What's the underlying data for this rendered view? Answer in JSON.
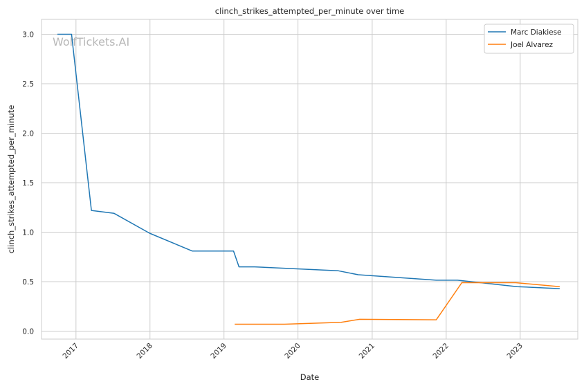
{
  "chart_data": {
    "type": "line",
    "title": "clinch_strikes_attempted_per_minute over time",
    "xlabel": "Date",
    "ylabel": "clinch_strikes_attempted_per_minute",
    "watermark": "WolfTickets.AI",
    "xlim": [
      "2016-07-15",
      "2023-10-12"
    ],
    "ylim": [
      -0.08,
      3.15
    ],
    "grid": true,
    "legend_position": "top-right",
    "x_ticks": [
      "2017",
      "2018",
      "2019",
      "2020",
      "2021",
      "2022",
      "2023"
    ],
    "y_ticks": [
      "0.0",
      "0.5",
      "1.0",
      "1.5",
      "2.0",
      "2.5",
      "3.0"
    ],
    "x_tick_values": [
      "2017-01-01",
      "2018-01-01",
      "2019-01-01",
      "2020-01-01",
      "2021-01-01",
      "2022-01-01",
      "2023-01-01"
    ],
    "y_tick_values": [
      0.0,
      0.5,
      1.0,
      1.5,
      2.0,
      2.5,
      3.0
    ],
    "series": [
      {
        "name": "Marc Diakiese",
        "color": "#1f77b4",
        "points": [
          {
            "x": "2016-10-01",
            "y": 3.0
          },
          {
            "x": "2016-12-10",
            "y": 3.0
          },
          {
            "x": "2017-03-18",
            "y": 1.22
          },
          {
            "x": "2017-07-08",
            "y": 1.19
          },
          {
            "x": "2017-12-30",
            "y": 0.99
          },
          {
            "x": "2018-07-28",
            "y": 0.81
          },
          {
            "x": "2019-02-17",
            "y": 0.81
          },
          {
            "x": "2019-03-16",
            "y": 0.65
          },
          {
            "x": "2019-06-01",
            "y": 0.65
          },
          {
            "x": "2020-07-18",
            "y": 0.61
          },
          {
            "x": "2020-10-24",
            "y": 0.57
          },
          {
            "x": "2021-11-13",
            "y": 0.515
          },
          {
            "x": "2022-02-26",
            "y": 0.515
          },
          {
            "x": "2022-12-17",
            "y": 0.45
          },
          {
            "x": "2023-07-15",
            "y": 0.43
          }
        ]
      },
      {
        "name": "Joel Alvarez",
        "color": "#ff7f0e",
        "points": [
          {
            "x": "2019-02-23",
            "y": 0.07
          },
          {
            "x": "2019-10-26",
            "y": 0.07
          },
          {
            "x": "2020-08-01",
            "y": 0.09
          },
          {
            "x": "2020-10-31",
            "y": 0.12
          },
          {
            "x": "2021-11-13",
            "y": 0.115
          },
          {
            "x": "2022-03-19",
            "y": 0.49
          },
          {
            "x": "2022-12-10",
            "y": 0.49
          },
          {
            "x": "2023-07-15",
            "y": 0.45
          }
        ]
      }
    ]
  }
}
